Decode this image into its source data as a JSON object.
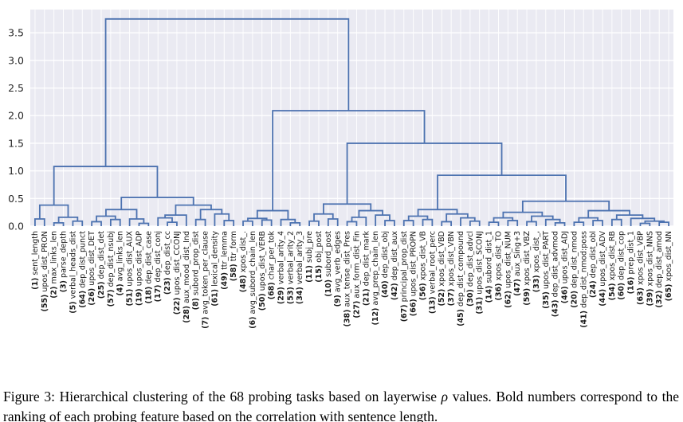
{
  "figure": {
    "caption": {
      "label": "Figure 3:",
      "before_rho": " Hierarchical clustering of the 68 probing tasks based on layerwise ",
      "rho": "ρ",
      "after_rho": " values. Bold numbers correspond to the ranking of each probing feature based on the correlation with sentence length."
    }
  },
  "chart_data": {
    "type": "dendrogram",
    "title": "",
    "xlabel": "",
    "ylabel": "",
    "ylim": [
      0,
      3.92
    ],
    "yticks": [
      0,
      0.5,
      1.0,
      1.5,
      2.0,
      2.5,
      3.0,
      3.5
    ],
    "grid": true,
    "root_height": 3.75,
    "colors": {
      "line": "#4c72b0",
      "plot_bg": "#eaeaf2",
      "grid": "#ffffff",
      "tick_label": "#262626",
      "leaf_label": "#1a1a1a"
    },
    "leaves": [
      "(1) sent_length",
      "(55) upos_dist_PRON",
      "(2) max_links_len",
      "(3) parse_depth",
      "(5) verbal_heads_dist",
      "(64) dep_dist_punct",
      "(26) upos_dist_DET",
      "(25) dep_dist_det",
      "(57) dep_dist_nsubj",
      "(4) avg_links_len",
      "(51) upos_dist_AUX",
      "(19) upos_dist_ADP",
      "(18) dep_dist_case",
      "(17) dep_dist_conj",
      "(23) dep_dist_cc",
      "(22) upos_dist_CCONJ",
      "(28) aux_mood_dist_Ind",
      "(8) subord_prop_dist",
      "(7) avg_token_per_clause",
      "(61) lexical_density",
      "(49) ttr_lemma",
      "(58) ttr_form",
      "(48) xpos_dist_.",
      "(6) avg_subord_chain_len",
      "(50) upos_dist_VERB",
      "(68) char_per_tok",
      "(29) verbal_arity_4",
      "(53) verbal_arity_2",
      "(34) verbal_arity_3",
      "(11) subj_pre",
      "(15) obj_post",
      "(10) subord_post",
      "(9) avg_verb_edges",
      "(38) aux_tense_dist_Pres",
      "(27) aux_form_dist_Fin",
      "(21) dep_dist_mark",
      "(12) avg_prep_chain_len",
      "(40) dep_dist_obj",
      "(42) dep_dist_aux",
      "(67) principal_prop_dist",
      "(66) upos_dist_PROPN",
      "(56) xpos_dist_VB",
      "(13) verbal_root_perc",
      "(52) xpos_dist_VBD",
      "(37) xpos_dist_VBN",
      "(45) dep_dist_compound",
      "(30) dep_dist_advcl",
      "(31) upos_dist_SCONJ",
      "(14) subord_dist_1",
      "(36) xpos_dist_TO",
      "(62) upos_dist_NUM",
      "(47) aux_Sing+3",
      "(59) xpos_dist_VBZ",
      "(33) xpos_dist_,",
      "(35) upos_dist_PART",
      "(43) dep_dist_advmod",
      "(46) upos_dist_ADJ",
      "(20) dep_dist_nmod",
      "(41) dep_dist_nmod:poss",
      "(24) dep_dist_obl",
      "(44) upos_dist_ADV",
      "(54) xpos_dist_RB",
      "(60) dep_dist_cop",
      "(16) prep_dist_1",
      "(63) xpos_dist_VBP",
      "(39) xpos_dist_NNS",
      "(32) dep_dist_amod",
      "(65) xpos_dist_NN"
    ],
    "linkage_tree": {
      "h": 3.75,
      "c": [
        {
          "h": 1.08,
          "c": [
            {
              "h": 0.38,
              "c": [
                {
                  "h": 0.13,
                  "c": [
                    0,
                    1
                  ]
                },
                {
                  "h": 0.16,
                  "c": [
                    {
                      "h": 0.06,
                      "c": [
                        2,
                        3
                      ]
                    },
                    {
                      "h": 0.09,
                      "c": [
                        4,
                        5
                      ]
                    }
                  ]
                }
              ]
            },
            {
              "h": 0.52,
              "c": [
                {
                  "h": 0.3,
                  "c": [
                    {
                      "h": 0.18,
                      "c": [
                        {
                          "h": 0.08,
                          "c": [
                            6,
                            7
                          ]
                        },
                        {
                          "h": 0.12,
                          "c": [
                            8,
                            9
                          ]
                        }
                      ]
                    },
                    {
                      "h": 0.13,
                      "c": [
                        10,
                        {
                          "h": 0.05,
                          "c": [
                            11,
                            12
                          ]
                        }
                      ]
                    }
                  ]
                },
                {
                  "h": 0.38,
                  "c": [
                    {
                      "h": 0.2,
                      "c": [
                        {
                          "h": 0.15,
                          "c": [
                            13,
                            {
                              "h": 0.07,
                              "c": [
                                14,
                                15
                              ]
                            }
                          ]
                        },
                        16
                      ]
                    },
                    {
                      "h": 0.3,
                      "c": [
                        {
                          "h": 0.12,
                          "c": [
                            17,
                            18
                          ]
                        },
                        {
                          "h": 0.22,
                          "c": [
                            19,
                            {
                              "h": 0.1,
                              "c": [
                                20,
                                21
                              ]
                            }
                          ]
                        }
                      ]
                    }
                  ]
                }
              ]
            }
          ]
        },
        {
          "h": 2.09,
          "c": [
            {
              "h": 0.28,
              "c": [
                {
                  "h": 0.14,
                  "c": [
                    {
                      "h": 0.09,
                      "c": [
                        22,
                        23
                      ]
                    },
                    {
                      "h": 0.11,
                      "c": [
                        24,
                        25
                      ]
                    }
                  ]
                },
                {
                  "h": 0.12,
                  "c": [
                    26,
                    {
                      "h": 0.06,
                      "c": [
                        27,
                        28
                      ]
                    }
                  ]
                }
              ]
            },
            {
              "h": 1.5,
              "c": [
                {
                  "h": 0.4,
                  "c": [
                    {
                      "h": 0.22,
                      "c": [
                        {
                          "h": 0.09,
                          "c": [
                            29,
                            30
                          ]
                        },
                        {
                          "h": 0.13,
                          "c": [
                            31,
                            32
                          ]
                        }
                      ]
                    },
                    {
                      "h": 0.28,
                      "c": [
                        {
                          "h": 0.16,
                          "c": [
                            {
                              "h": 0.08,
                              "c": [
                                33,
                                34
                              ]
                            },
                            35
                          ]
                        },
                        {
                          "h": 0.2,
                          "c": [
                            36,
                            {
                              "h": 0.1,
                              "c": [
                                37,
                                38
                              ]
                            }
                          ]
                        }
                      ]
                    }
                  ]
                },
                {
                  "h": 0.92,
                  "c": [
                    {
                      "h": 0.3,
                      "c": [
                        {
                          "h": 0.18,
                          "c": [
                            {
                              "h": 0.1,
                              "c": [
                                39,
                                40
                              ]
                            },
                            {
                              "h": 0.12,
                              "c": [
                                41,
                                42
                              ]
                            }
                          ]
                        },
                        {
                          "h": 0.22,
                          "c": [
                            {
                              "h": 0.08,
                              "c": [
                                43,
                                44
                              ]
                            },
                            {
                              "h": 0.15,
                              "c": [
                                45,
                                {
                                  "h": 0.09,
                                  "c": [
                                    46,
                                    47
                                  ]
                                }
                              ]
                            }
                          ]
                        }
                      ]
                    },
                    {
                      "h": 0.45,
                      "c": [
                        {
                          "h": 0.25,
                          "c": [
                            {
                              "h": 0.15,
                              "c": [
                                {
                                  "h": 0.07,
                                  "c": [
                                    48,
                                    49
                                  ]
                                },
                                {
                                  "h": 0.1,
                                  "c": [
                                    50,
                                    51
                                  ]
                                }
                              ]
                            },
                            {
                              "h": 0.18,
                              "c": [
                                {
                                  "h": 0.08,
                                  "c": [
                                    52,
                                    53
                                  ]
                                },
                                {
                                  "h": 0.12,
                                  "c": [
                                    54,
                                    {
                                      "h": 0.06,
                                      "c": [
                                        55,
                                        56
                                      ]
                                    }
                                  ]
                                }
                              ]
                            }
                          ]
                        },
                        {
                          "h": 0.28,
                          "c": [
                            {
                              "h": 0.15,
                              "c": [
                                {
                                  "h": 0.07,
                                  "c": [
                                    57,
                                    58
                                  ]
                                },
                                {
                                  "h": 0.1,
                                  "c": [
                                    59,
                                    60
                                  ]
                                }
                              ]
                            },
                            {
                              "h": 0.2,
                              "c": [
                                {
                                  "h": 0.12,
                                  "c": [
                                    61,
                                    62
                                  ]
                                },
                                {
                                  "h": 0.14,
                                  "c": [
                                    63,
                                    {
                                      "h": 0.09,
                                      "c": [
                                        {
                                          "h": 0.05,
                                          "c": [
                                            64,
                                            65
                                          ]
                                        },
                                        {
                                          "h": 0.07,
                                          "c": [
                                            66,
                                            67
                                          ]
                                        }
                                      ]
                                    }
                                  ]
                                }
                              ]
                            }
                          ]
                        }
                      ]
                    }
                  ]
                }
              ]
            }
          ]
        }
      ]
    }
  }
}
